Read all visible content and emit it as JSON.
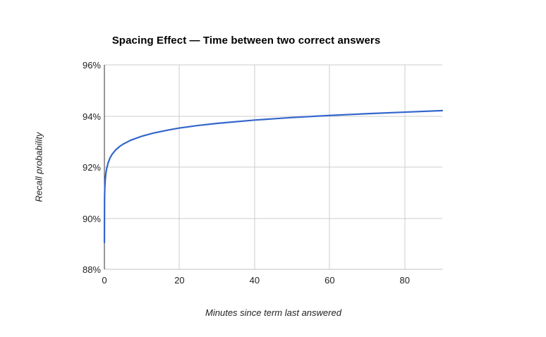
{
  "chart_data": {
    "type": "line",
    "title": "Spacing Effect — Time between two correct answers",
    "xlabel": "Minutes since term last answered",
    "ylabel": "Recall probability",
    "xlim": [
      0,
      90
    ],
    "ylim": [
      88,
      96
    ],
    "x_ticks": [
      0,
      20,
      40,
      60,
      80
    ],
    "y_ticks": [
      88,
      90,
      92,
      94,
      96
    ],
    "y_tick_suffix": "%",
    "grid": true,
    "legend_position": "none",
    "series": [
      {
        "name": "Recall probability",
        "color": "#3366cc",
        "points": [
          [
            0,
            89.05
          ],
          [
            0.03,
            90.59
          ],
          [
            0.06,
            90.9
          ],
          [
            0.1,
            91.13
          ],
          [
            0.15,
            91.32
          ],
          [
            0.25,
            91.55
          ],
          [
            0.4,
            91.76
          ],
          [
            0.6,
            91.94
          ],
          [
            1,
            92.17
          ],
          [
            1.5,
            92.36
          ],
          [
            2,
            92.49
          ],
          [
            3,
            92.67
          ],
          [
            4,
            92.8
          ],
          [
            5,
            92.9
          ],
          [
            7,
            93.05
          ],
          [
            10,
            93.21
          ],
          [
            13,
            93.33
          ],
          [
            17,
            93.45
          ],
          [
            20,
            93.53
          ],
          [
            25,
            93.63
          ],
          [
            30,
            93.71
          ],
          [
            40,
            93.84
          ],
          [
            50,
            93.94
          ],
          [
            60,
            94.02
          ],
          [
            70,
            94.09
          ],
          [
            80,
            94.15
          ],
          [
            90,
            94.21
          ]
        ]
      }
    ]
  },
  "style": {
    "background": "#ffffff",
    "gridline_color": "#cccccc",
    "bottom_axis_color": "#c2c2c2",
    "baseline_color": "#333333",
    "tick_label_color": "#222222",
    "title_color": "#000000",
    "line_width": 2.2
  }
}
